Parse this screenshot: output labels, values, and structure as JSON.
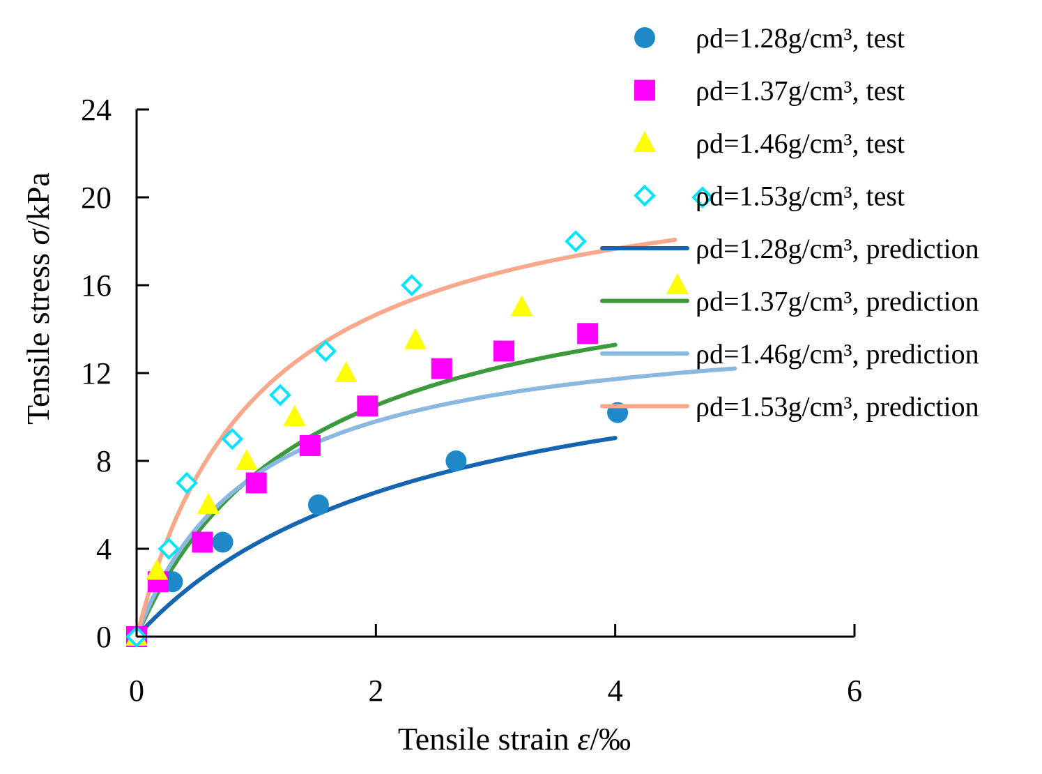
{
  "chart_data": {
    "type": "scatter",
    "title": "",
    "xlabel": {
      "prefix": "Tensile strain ",
      "symbol": "ε",
      "suffix": "/‰"
    },
    "ylabel": {
      "prefix": "Tensile stress ",
      "symbol": "σ",
      "suffix": "/kPa"
    },
    "xlim": [
      0,
      6
    ],
    "ylim": [
      0,
      24
    ],
    "x_ticks": [
      0,
      2,
      4,
      6
    ],
    "y_ticks": [
      0,
      4,
      8,
      12,
      16,
      20,
      24
    ],
    "grid": false,
    "legend_position": "top-right",
    "series": [
      {
        "name": "ρd=1.28g/cm³, test",
        "kind": "marker",
        "marker": "circle",
        "color": "#1E88C8",
        "x": [
          0,
          0.3,
          0.72,
          1.52,
          2.67,
          4.02
        ],
        "y": [
          0,
          2.5,
          4.3,
          6.0,
          8.0,
          10.2
        ]
      },
      {
        "name": "ρd=1.37g/cm³, test",
        "kind": "marker",
        "marker": "square",
        "color": "#FF00FF",
        "x": [
          0,
          0.18,
          0.55,
          1.0,
          1.45,
          1.93,
          2.55,
          3.07,
          3.77
        ],
        "y": [
          0,
          2.5,
          4.3,
          7.0,
          8.7,
          10.5,
          12.2,
          13.0,
          13.8
        ]
      },
      {
        "name": "ρd=1.46g/cm³, test",
        "kind": "marker",
        "marker": "triangle",
        "color": "#FFFF00",
        "x": [
          0,
          0.17,
          0.6,
          0.92,
          1.32,
          1.75,
          2.33,
          3.22,
          4.52
        ],
        "y": [
          0,
          3.0,
          6.0,
          8.0,
          10.0,
          12.0,
          13.5,
          15.0,
          16.0
        ]
      },
      {
        "name": "ρd=1.53g/cm³, test",
        "kind": "marker",
        "marker": "diamond",
        "color": "#00E5FF",
        "x": [
          0,
          0.27,
          0.42,
          0.8,
          1.2,
          1.58,
          2.3,
          3.67,
          4.73
        ],
        "y": [
          0,
          4.0,
          7.0,
          9.0,
          11.0,
          13.0,
          16.0,
          18.0,
          20.0
        ]
      },
      {
        "name": "ρd=1.28g/cm³, prediction",
        "kind": "line",
        "color": "#1565B0",
        "model": {
          "a": 14.54,
          "b": 2.43
        },
        "x_range": [
          0,
          4.0
        ]
      },
      {
        "name": "ρd=1.37g/cm³, prediction",
        "kind": "line",
        "color": "#3C9A3C",
        "model": {
          "a": 18.0,
          "b": 1.42
        },
        "x_range": [
          0,
          4.0
        ]
      },
      {
        "name": "ρd=1.46g/cm³, prediction",
        "kind": "line",
        "color": "#8AB8E0",
        "model": {
          "a": 14.6,
          "b": 0.98
        },
        "x_range": [
          0,
          5.0
        ]
      },
      {
        "name": "ρd=1.53g/cm³, prediction",
        "kind": "line",
        "color": "#F9A88C",
        "model": {
          "a": 22.2,
          "b": 1.03
        },
        "x_range": [
          0,
          4.5
        ]
      }
    ]
  }
}
